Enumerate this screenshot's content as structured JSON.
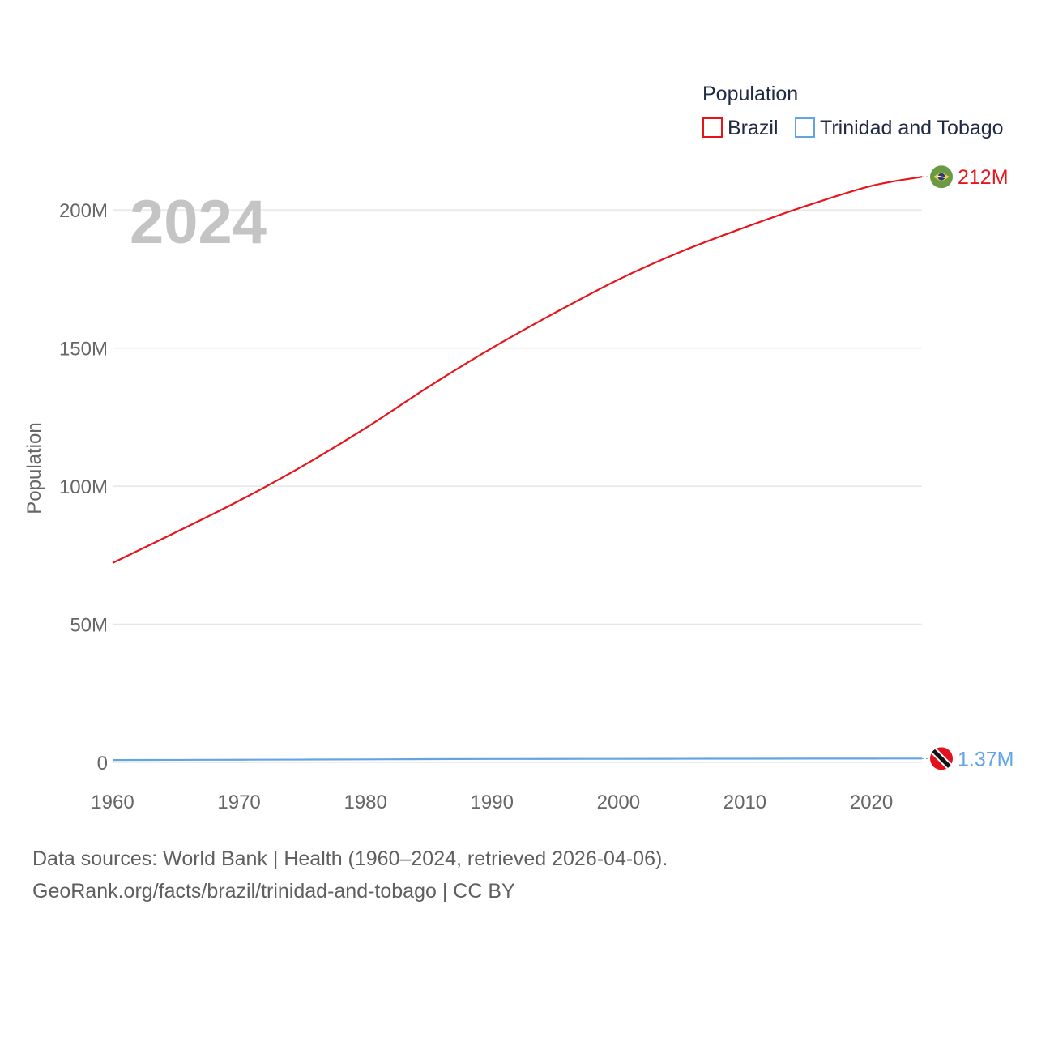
{
  "chart_data": {
    "type": "line",
    "title": "Population",
    "ylabel": "Population",
    "xlabel": "",
    "current_year_label": "2024",
    "xlim": [
      1960,
      2024
    ],
    "ylim": [
      0,
      215000000
    ],
    "x_ticks": [
      1960,
      1970,
      1980,
      1990,
      2000,
      2010,
      2020
    ],
    "y_ticks": [
      {
        "value": 0,
        "label": "0"
      },
      {
        "value": 50000000,
        "label": "50M"
      },
      {
        "value": 100000000,
        "label": "100M"
      },
      {
        "value": 150000000,
        "label": "150M"
      },
      {
        "value": 200000000,
        "label": "200M"
      }
    ],
    "x": [
      1960,
      1965,
      1970,
      1975,
      1980,
      1985,
      1990,
      1995,
      2000,
      2005,
      2010,
      2015,
      2020,
      2024
    ],
    "series": [
      {
        "name": "Brazil",
        "color": "#e8141c",
        "end_label": "212M",
        "flag_icon": "brazil-flag-icon",
        "values": [
          72200000,
          83300000,
          94700000,
          107200000,
          121000000,
          136000000,
          150000000,
          162800000,
          174800000,
          185000000,
          193700000,
          201700000,
          208700000,
          212000000
        ]
      },
      {
        "name": "Trinidad and Tobago",
        "color": "#63a4e4",
        "end_label": "1.37M",
        "flag_icon": "trinidad-and-tobago-flag-icon",
        "values": [
          848000,
          905000,
          955000,
          1010000,
          1083000,
          1167000,
          1222000,
          1255000,
          1268000,
          1295000,
          1328000,
          1350000,
          1367000,
          1370000
        ]
      }
    ]
  },
  "footer": {
    "line1": "Data sources: World Bank | Health (1960–2024, retrieved 2026-04-06).",
    "line2": "GeoRank.org/facts/brazil/trinidad-and-tobago | CC BY"
  }
}
